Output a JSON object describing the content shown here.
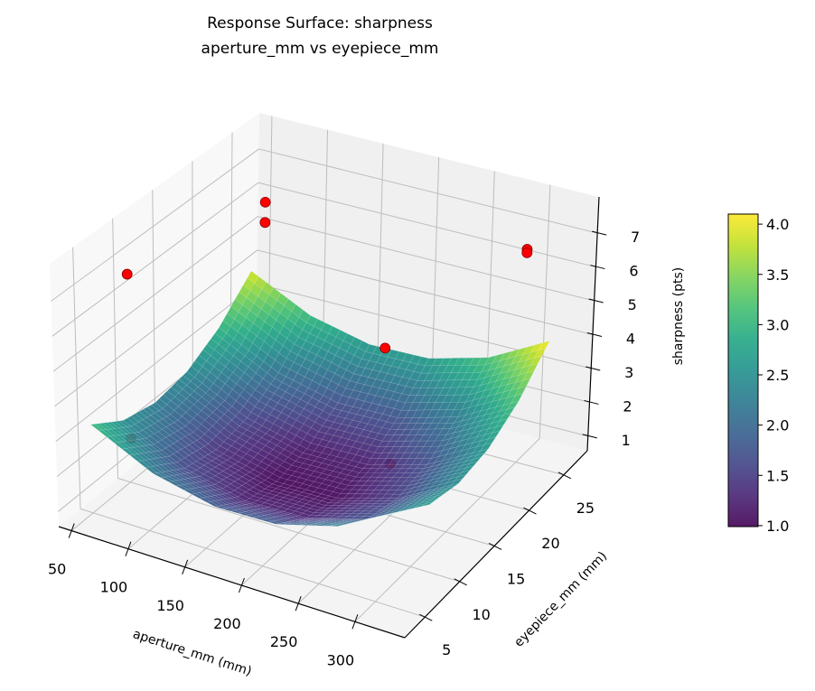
{
  "chart_data": {
    "type": "surface",
    "title": "Response Surface: sharpness",
    "subtitle": "aperture_mm vs eyepiece_mm",
    "xlabel": "aperture_mm (mm)",
    "ylabel": "eyepiece_mm (mm)",
    "zlabel": "sharpness (pts)",
    "xlim": [
      38.7,
      343.9
    ],
    "ylim": [
      2.1,
      28.4
    ],
    "zlim": [
      0.57,
      8.07
    ],
    "xticks": [
      "50",
      "100",
      "150",
      "200",
      "250",
      "300"
    ],
    "yticks": [
      "5",
      "10",
      "15",
      "20",
      "25"
    ],
    "zticks": [
      "1",
      "2",
      "3",
      "4",
      "5",
      "6",
      "7"
    ],
    "grid": true,
    "colormap": "viridis",
    "surface": {
      "x": [
        50,
        104,
        158,
        212,
        266,
        320
      ],
      "y": [
        5,
        9.2,
        13.4,
        17.6,
        21.8,
        26
      ],
      "z": [
        [
          3.1,
          2.24,
          1.84,
          1.88,
          2.36,
          3.3
        ],
        [
          2.49,
          1.64,
          1.23,
          1.27,
          1.76,
          2.69
        ],
        [
          2.27,
          1.41,
          1.0,
          1.04,
          1.53,
          2.47
        ],
        [
          2.43,
          1.57,
          1.16,
          1.2,
          1.69,
          2.63
        ],
        [
          2.97,
          2.12,
          1.71,
          1.75,
          2.24,
          3.17
        ],
        [
          3.9,
          3.04,
          2.64,
          2.68,
          3.16,
          4.1
        ]
      ]
    },
    "points": [
      {
        "x": 60,
        "y": 8.6,
        "z": 6.9
      },
      {
        "x": 55,
        "y": 27,
        "z": 5.8
      },
      {
        "x": 55,
        "y": 27,
        "z": 5.2
      },
      {
        "x": 298,
        "y": 25.8,
        "z": 6.65
      },
      {
        "x": 298,
        "y": 25.8,
        "z": 6.55
      },
      {
        "x": 191,
        "y": 23.1,
        "z": 3.36
      },
      {
        "x": 60,
        "y": 8.7,
        "z": 2.15
      },
      {
        "x": 228,
        "y": 18.4,
        "z": 1.2
      }
    ],
    "point_color": "#ff0000",
    "colorbar": {
      "range": [
        0.99,
        4.1
      ],
      "ticks": [
        "1.0",
        "1.5",
        "2.0",
        "2.5",
        "3.0",
        "3.5",
        "4.0"
      ]
    }
  }
}
